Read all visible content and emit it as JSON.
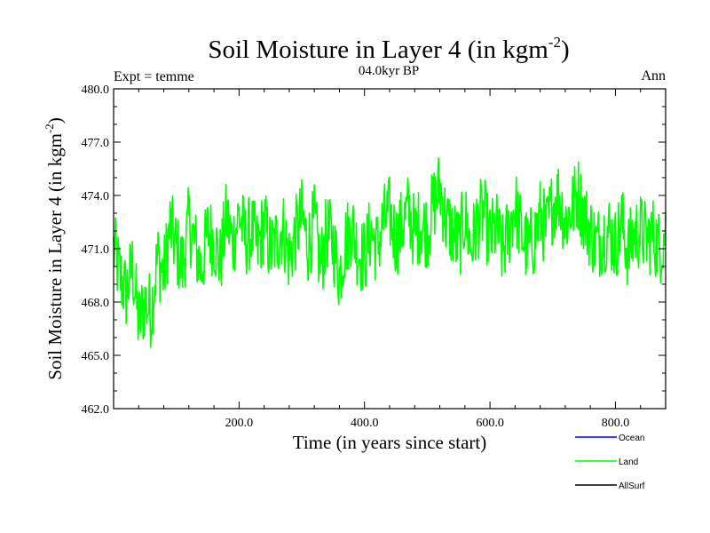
{
  "chart_data": {
    "type": "line",
    "title": "Soil Moisture in Layer 4 (in kgm",
    "title_sup": "-2",
    "title_close": ")",
    "subtitle": "04.0kyr BP",
    "left_label": "Expt = temme",
    "right_label": "Ann",
    "xlabel": "Time (in years since start)",
    "ylabel": "Soil Moisture in Layer 4 (in kgm",
    "ylabel_sup": "-2",
    "ylabel_close": ")",
    "xlim": [
      0,
      880
    ],
    "ylim": [
      462,
      480
    ],
    "xticks": [
      200,
      400,
      600,
      800
    ],
    "xtick_labels": [
      "200.0",
      "400.0",
      "600.0",
      "800.0"
    ],
    "yticks": [
      462,
      465,
      468,
      471,
      474,
      477,
      480
    ],
    "ytick_labels": [
      "462.0",
      "465.0",
      "468.0",
      "471.0",
      "474.0",
      "477.0",
      "480.0"
    ],
    "legend_position": "bottom-right",
    "legend": [
      {
        "name": "Ocean",
        "color": "#0000ff"
      },
      {
        "name": "Land",
        "color": "#00ff00"
      },
      {
        "name": "AllSurf",
        "color": "#000000"
      }
    ],
    "series": [
      {
        "name": "Land",
        "color": "#00ff00",
        "x": [
          0,
          10,
          20,
          30,
          40,
          50,
          60,
          70,
          80,
          90,
          100,
          110,
          120,
          130,
          140,
          150,
          160,
          170,
          180,
          190,
          200,
          210,
          220,
          230,
          240,
          250,
          260,
          270,
          280,
          290,
          300,
          310,
          320,
          330,
          340,
          350,
          360,
          370,
          380,
          390,
          400,
          410,
          420,
          430,
          440,
          450,
          460,
          470,
          480,
          490,
          500,
          510,
          520,
          530,
          540,
          550,
          560,
          570,
          580,
          590,
          600,
          610,
          620,
          630,
          640,
          650,
          660,
          670,
          680,
          690,
          700,
          710,
          720,
          730,
          740,
          750,
          760,
          770,
          780,
          790,
          800,
          810,
          820,
          830,
          840,
          850,
          860,
          870,
          880
        ],
        "values": [
          471.0,
          469.5,
          468.5,
          470.0,
          466.8,
          468.0,
          467.5,
          470.5,
          469.5,
          472.3,
          471.0,
          470.0,
          472.5,
          471.2,
          469.8,
          472.0,
          471.5,
          470.2,
          472.8,
          471.3,
          473.0,
          471.5,
          472.0,
          471.0,
          472.5,
          470.8,
          471.5,
          472.2,
          470.5,
          471.8,
          472.8,
          471.2,
          472.5,
          470.0,
          472.0,
          471.3,
          469.5,
          471.5,
          472.3,
          470.8,
          470.5,
          472.0,
          471.0,
          472.5,
          473.0,
          471.5,
          472.3,
          473.2,
          471.8,
          472.5,
          472.0,
          473.5,
          474.5,
          472.5,
          472.0,
          471.2,
          472.8,
          471.0,
          472.5,
          473.0,
          471.5,
          472.2,
          470.8,
          472.0,
          473.5,
          471.8,
          471.0,
          471.5,
          472.8,
          472.0,
          473.5,
          474.0,
          472.5,
          473.2,
          474.2,
          472.8,
          472.0,
          471.2,
          471.8,
          472.0,
          471.2,
          472.5,
          470.8,
          471.8,
          472.0,
          471.5,
          471.8,
          471.0,
          472.0
        ],
        "noise_amplitude": 2.2
      },
      {
        "name": "Ocean",
        "color": "#0000ff",
        "values": []
      },
      {
        "name": "AllSurf",
        "color": "#000000",
        "values": []
      }
    ]
  }
}
